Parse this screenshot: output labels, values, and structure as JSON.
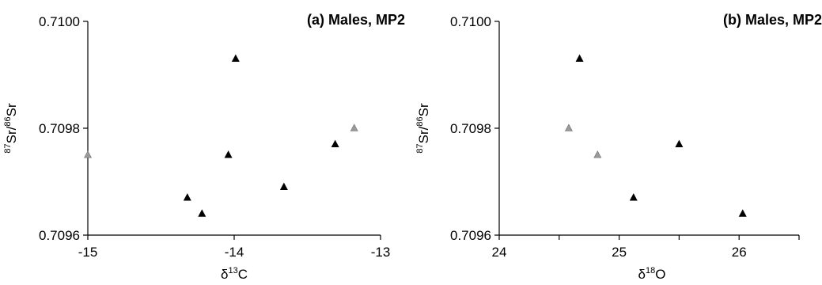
{
  "chart_data": [
    {
      "type": "scatter",
      "title": "(a) Males, MP2",
      "xlabel": {
        "prefix": "δ",
        "sup": "13",
        "main": "C"
      },
      "ylabel": {
        "sup1": "87",
        "main1": "Sr/",
        "sup2": "86",
        "main2": "Sr"
      },
      "xlim": [
        -15,
        -13
      ],
      "ylim": [
        0.7096,
        0.71
      ],
      "xticks": [
        -15,
        -14,
        -13
      ],
      "xtick_labels": [
        "-15",
        "-14",
        "-13"
      ],
      "yticks": [
        0.7096,
        0.7098,
        0.71
      ],
      "ytick_labels": [
        "0.7096",
        "0.7098",
        "0.7100"
      ],
      "grid": false,
      "points": [
        {
          "x": -15.0,
          "y": 0.70975,
          "color": "#9a9a9a"
        },
        {
          "x": -14.32,
          "y": 0.70967,
          "color": "#000000"
        },
        {
          "x": -14.22,
          "y": 0.70964,
          "color": "#000000"
        },
        {
          "x": -14.04,
          "y": 0.70975,
          "color": "#000000"
        },
        {
          "x": -13.99,
          "y": 0.70993,
          "color": "#000000"
        },
        {
          "x": -13.66,
          "y": 0.70969,
          "color": "#000000"
        },
        {
          "x": -13.31,
          "y": 0.70977,
          "color": "#000000"
        },
        {
          "x": -13.18,
          "y": 0.7098,
          "color": "#9a9a9a"
        }
      ]
    },
    {
      "type": "scatter",
      "title": "(b) Males, MP2",
      "xlabel": {
        "prefix": "δ",
        "sup": "18",
        "main": "O"
      },
      "ylabel": {
        "sup1": "87",
        "main1": "Sr/",
        "sup2": "86",
        "main2": "Sr"
      },
      "xlim": [
        24,
        26.5
      ],
      "ylim": [
        0.7096,
        0.71
      ],
      "xticks": [
        24,
        25,
        26
      ],
      "xtick_labels": [
        "24",
        "25",
        "26"
      ],
      "xminor": [
        24.5,
        25.5,
        26.5
      ],
      "yticks": [
        0.7096,
        0.7098,
        0.71
      ],
      "ytick_labels": [
        "0.7096",
        "0.7098",
        "0.7100"
      ],
      "grid": false,
      "points": [
        {
          "x": 24.67,
          "y": 0.70993,
          "color": "#000000"
        },
        {
          "x": 24.58,
          "y": 0.7098,
          "color": "#9a9a9a"
        },
        {
          "x": 24.82,
          "y": 0.70975,
          "color": "#9a9a9a"
        },
        {
          "x": 25.5,
          "y": 0.70977,
          "color": "#000000"
        },
        {
          "x": 25.12,
          "y": 0.70967,
          "color": "#000000"
        },
        {
          "x": 26.03,
          "y": 0.70964,
          "color": "#000000"
        }
      ]
    }
  ]
}
